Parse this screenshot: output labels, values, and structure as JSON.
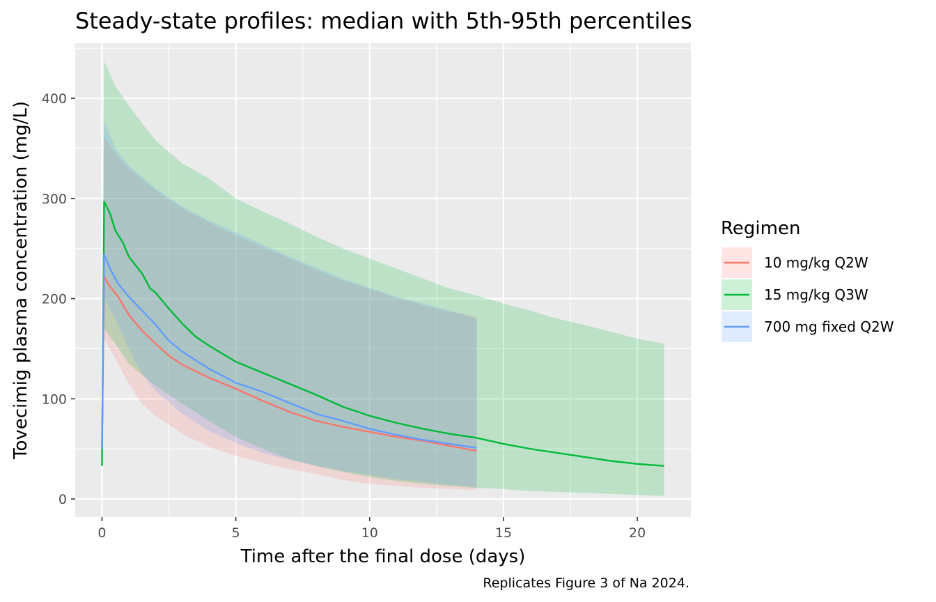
{
  "chart_data": {
    "type": "line",
    "title": "Steady-state profiles: median with 5th-95th percentiles",
    "xlabel": "Time after the final dose (days)",
    "ylabel": "Tovecimig plasma concentration (mg/L)",
    "caption": "Replicates Figure 3 of Na 2024.",
    "xlim": [
      -1,
      22
    ],
    "ylim": [
      -18,
      455
    ],
    "x_ticks": [
      0,
      5,
      10,
      15,
      20
    ],
    "y_ticks": [
      0,
      100,
      200,
      300,
      400
    ],
    "x_tick_labels": [
      "0",
      "5",
      "10",
      "15",
      "20"
    ],
    "y_tick_labels": [
      "0",
      "100",
      "200",
      "300",
      "400"
    ],
    "grid": true,
    "legend": {
      "title": "Regimen",
      "position": "right"
    },
    "series": [
      {
        "name": "10 mg/kg Q2W",
        "color": "#F8766D",
        "median": [
          [
            0,
            50
          ],
          [
            0.08,
            222
          ],
          [
            0.3,
            212
          ],
          [
            0.6,
            202
          ],
          [
            1,
            184
          ],
          [
            1.5,
            168
          ],
          [
            2,
            155
          ],
          [
            2.5,
            143
          ],
          [
            3,
            134
          ],
          [
            4,
            121
          ],
          [
            5,
            110
          ],
          [
            6,
            98
          ],
          [
            7,
            87
          ],
          [
            8,
            78
          ],
          [
            9,
            72
          ],
          [
            10,
            67
          ],
          [
            11,
            62
          ],
          [
            12,
            58
          ],
          [
            13,
            53
          ],
          [
            14,
            48
          ]
        ],
        "p05": [
          [
            0,
            45
          ],
          [
            0.08,
            160
          ],
          [
            0.5,
            140
          ],
          [
            1,
            115
          ],
          [
            1.5,
            95
          ],
          [
            2,
            83
          ],
          [
            3,
            65
          ],
          [
            4,
            52
          ],
          [
            5,
            43
          ],
          [
            6,
            36
          ],
          [
            7,
            30
          ],
          [
            8,
            25
          ],
          [
            9,
            19
          ],
          [
            10,
            15
          ],
          [
            11,
            13
          ],
          [
            12,
            11
          ],
          [
            13,
            10
          ],
          [
            14,
            9
          ]
        ],
        "p95": [
          [
            0,
            55
          ],
          [
            0.08,
            362
          ],
          [
            0.5,
            345
          ],
          [
            1,
            330
          ],
          [
            2,
            308
          ],
          [
            3,
            290
          ],
          [
            4,
            276
          ],
          [
            5,
            263
          ],
          [
            6,
            252
          ],
          [
            7,
            240
          ],
          [
            8,
            229
          ],
          [
            9,
            218
          ],
          [
            10,
            210
          ],
          [
            11,
            201
          ],
          [
            12,
            193
          ],
          [
            13,
            187
          ],
          [
            14,
            182
          ]
        ]
      },
      {
        "name": "15 mg/kg Q3W",
        "color": "#00BA38",
        "median": [
          [
            0,
            33
          ],
          [
            0.08,
            297
          ],
          [
            0.3,
            285
          ],
          [
            0.5,
            268
          ],
          [
            0.8,
            255
          ],
          [
            1,
            242
          ],
          [
            1.5,
            225
          ],
          [
            1.8,
            210
          ],
          [
            2,
            206
          ],
          [
            2.5,
            190
          ],
          [
            3,
            175
          ],
          [
            3.5,
            162
          ],
          [
            4,
            153
          ],
          [
            5,
            137
          ],
          [
            6,
            126
          ],
          [
            7,
            115
          ],
          [
            8,
            104
          ],
          [
            9,
            92
          ],
          [
            10,
            83
          ],
          [
            11,
            76
          ],
          [
            12,
            70
          ],
          [
            13,
            65
          ],
          [
            14,
            61
          ],
          [
            15,
            55
          ],
          [
            16,
            50
          ],
          [
            17,
            46
          ],
          [
            18,
            42
          ],
          [
            19,
            38
          ],
          [
            20,
            35
          ],
          [
            21,
            33
          ]
        ],
        "p05": [
          [
            0,
            30
          ],
          [
            0.08,
            170
          ],
          [
            0.5,
            155
          ],
          [
            1,
            135
          ],
          [
            2,
            113
          ],
          [
            3,
            95
          ],
          [
            4,
            78
          ],
          [
            5,
            62
          ],
          [
            6,
            50
          ],
          [
            7,
            40
          ],
          [
            8,
            33
          ],
          [
            9,
            27
          ],
          [
            10,
            22
          ],
          [
            11,
            18
          ],
          [
            12,
            15
          ],
          [
            13,
            13
          ],
          [
            14,
            11
          ],
          [
            15,
            10
          ],
          [
            16,
            8
          ],
          [
            17,
            7
          ],
          [
            18,
            6
          ],
          [
            19,
            5
          ],
          [
            20,
            4
          ],
          [
            21,
            3
          ]
        ],
        "p95": [
          [
            0,
            36
          ],
          [
            0.08,
            437
          ],
          [
            0.5,
            412
          ],
          [
            1,
            393
          ],
          [
            1.5,
            375
          ],
          [
            2,
            358
          ],
          [
            3,
            335
          ],
          [
            4,
            320
          ],
          [
            5,
            300
          ],
          [
            6,
            287
          ],
          [
            7,
            275
          ],
          [
            8,
            262
          ],
          [
            9,
            250
          ],
          [
            10,
            240
          ],
          [
            11,
            230
          ],
          [
            12,
            220
          ],
          [
            13,
            210
          ],
          [
            14,
            203
          ],
          [
            15,
            195
          ],
          [
            16,
            188
          ],
          [
            17,
            180
          ],
          [
            18,
            174
          ],
          [
            19,
            167
          ],
          [
            20,
            160
          ],
          [
            21,
            155
          ]
        ]
      },
      {
        "name": "700 mg fixed Q2W",
        "color": "#619CFF",
        "median": [
          [
            0,
            50
          ],
          [
            0.08,
            244
          ],
          [
            0.3,
            230
          ],
          [
            0.6,
            215
          ],
          [
            1,
            202
          ],
          [
            1.5,
            188
          ],
          [
            2,
            174
          ],
          [
            2.5,
            158
          ],
          [
            3,
            147
          ],
          [
            4,
            130
          ],
          [
            5,
            116
          ],
          [
            6,
            107
          ],
          [
            7,
            96
          ],
          [
            8,
            85
          ],
          [
            9,
            78
          ],
          [
            10,
            70
          ],
          [
            11,
            64
          ],
          [
            12,
            59
          ],
          [
            13,
            55
          ],
          [
            14,
            51
          ]
        ],
        "p05": [
          [
            0,
            45
          ],
          [
            0.08,
            200
          ],
          [
            0.5,
            180
          ],
          [
            1,
            150
          ],
          [
            1.5,
            125
          ],
          [
            2,
            108
          ],
          [
            3,
            85
          ],
          [
            4,
            68
          ],
          [
            5,
            56
          ],
          [
            6,
            46
          ],
          [
            7,
            39
          ],
          [
            8,
            33
          ],
          [
            9,
            28
          ],
          [
            10,
            24
          ],
          [
            11,
            20
          ],
          [
            12,
            17
          ],
          [
            13,
            14
          ],
          [
            14,
            12
          ]
        ],
        "p95": [
          [
            0,
            55
          ],
          [
            0.08,
            378
          ],
          [
            0.5,
            350
          ],
          [
            1,
            333
          ],
          [
            2,
            310
          ],
          [
            3,
            292
          ],
          [
            4,
            278
          ],
          [
            5,
            266
          ],
          [
            6,
            254
          ],
          [
            7,
            242
          ],
          [
            8,
            231
          ],
          [
            9,
            220
          ],
          [
            10,
            211
          ],
          [
            11,
            202
          ],
          [
            12,
            195
          ],
          [
            13,
            188
          ],
          [
            14,
            180
          ]
        ]
      }
    ]
  }
}
